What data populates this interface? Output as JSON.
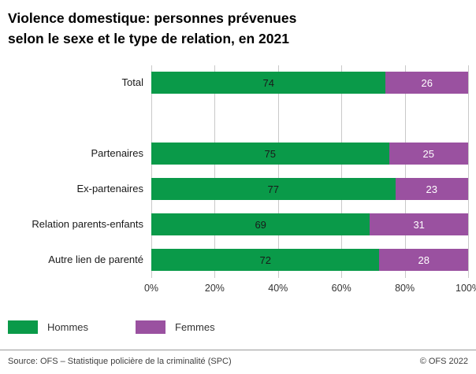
{
  "title": {
    "line1": "Violence domestique: personnes prévenues",
    "line2": "selon le sexe et le type de relation, en 2021"
  },
  "chart_data": {
    "type": "bar",
    "orientation": "horizontal",
    "stacked": true,
    "unit": "%",
    "grid": true,
    "xlim": [
      0,
      100
    ],
    "x_ticks": [
      "0%",
      "20%",
      "40%",
      "60%",
      "80%",
      "100%"
    ],
    "series_names": [
      "Hommes",
      "Femmes"
    ],
    "colors": {
      "hommes": "#0a9a49",
      "femmes": "#9a51a0"
    },
    "value_text_colors": {
      "hommes": "#1a1a1a",
      "femmes": "#ffffff"
    },
    "rows": [
      {
        "label": "Total",
        "values": [
          74,
          26
        ],
        "spacer": false
      },
      {
        "label": "",
        "values": null,
        "spacer": true
      },
      {
        "label": "Partenaires",
        "values": [
          75,
          25
        ],
        "spacer": false
      },
      {
        "label": "Ex-partenaires",
        "values": [
          77,
          23
        ],
        "spacer": false
      },
      {
        "label": "Relation parents-enfants",
        "values": [
          69,
          31
        ],
        "spacer": false
      },
      {
        "label": "Autre lien de parenté",
        "values": [
          72,
          28
        ],
        "spacer": false
      }
    ]
  },
  "legend": {
    "items": [
      {
        "label": "Hommes",
        "color": "#0a9a49"
      },
      {
        "label": "Femmes",
        "color": "#9a51a0"
      }
    ]
  },
  "footer": {
    "source": "Source: OFS – Statistique policière de la criminalité (SPC)",
    "copyright": "© OFS 2022"
  }
}
